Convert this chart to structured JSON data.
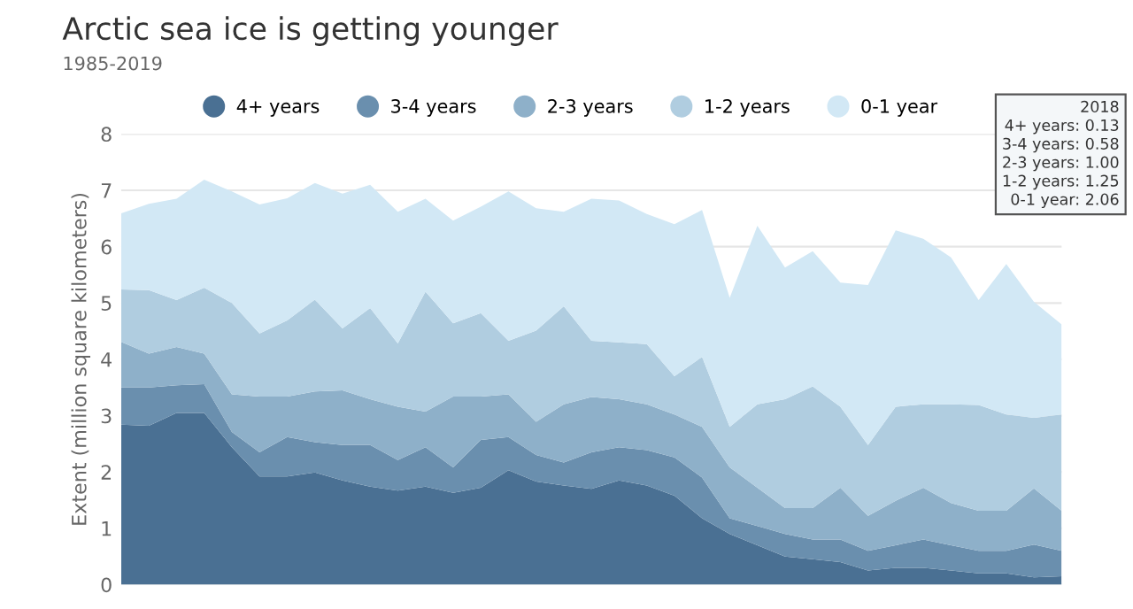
{
  "chart_data": {
    "type": "area",
    "stacked": true,
    "title": "Arctic sea ice is getting younger",
    "subtitle": "1985-2019",
    "ylabel": "Extent (million square kilometers)",
    "categories": [
      null,
      null,
      null,
      null,
      null,
      null,
      null,
      null,
      null,
      null,
      null,
      null,
      null,
      null,
      null,
      null,
      null,
      null,
      null,
      null,
      null,
      null,
      null,
      null,
      null,
      null,
      null,
      null,
      null,
      null,
      null,
      null,
      null,
      null,
      null
    ],
    "series": [
      {
        "name": "4+ years",
        "color": "#4a7093",
        "values": [
          2.84,
          2.82,
          3.05,
          3.05,
          2.44,
          1.92,
          1.92,
          1.99,
          1.85,
          1.74,
          1.67,
          1.74,
          1.63,
          1.72,
          2.03,
          1.83,
          1.76,
          1.7,
          1.85,
          1.76,
          1.58,
          1.18,
          0.9,
          0.7,
          0.5,
          0.45,
          0.4,
          0.25,
          0.3,
          0.3,
          0.25,
          0.2,
          0.2,
          0.13,
          0.15
        ]
      },
      {
        "name": "3-4 years",
        "color": "#6a8fae",
        "values": [
          0.66,
          0.68,
          0.49,
          0.51,
          0.27,
          0.43,
          0.7,
          0.54,
          0.63,
          0.74,
          0.54,
          0.7,
          0.45,
          0.85,
          0.59,
          0.47,
          0.41,
          0.65,
          0.59,
          0.63,
          0.68,
          0.72,
          0.28,
          0.34,
          0.4,
          0.35,
          0.4,
          0.35,
          0.4,
          0.5,
          0.45,
          0.4,
          0.4,
          0.58,
          0.45
        ]
      },
      {
        "name": "2-3 years",
        "color": "#8eb0c9",
        "values": [
          0.81,
          0.6,
          0.68,
          0.54,
          0.67,
          0.99,
          0.72,
          0.9,
          0.97,
          0.81,
          0.95,
          0.63,
          1.26,
          0.77,
          0.76,
          0.59,
          1.03,
          0.98,
          0.85,
          0.81,
          0.76,
          0.9,
          0.9,
          0.68,
          0.46,
          0.56,
          0.92,
          0.62,
          0.79,
          0.92,
          0.75,
          0.71,
          0.71,
          1.0,
          0.71
        ]
      },
      {
        "name": "1-2 years",
        "color": "#b0cde0",
        "values": [
          0.93,
          1.13,
          0.83,
          1.17,
          1.62,
          1.12,
          1.35,
          1.63,
          1.1,
          1.62,
          1.12,
          2.13,
          1.3,
          1.48,
          0.95,
          1.62,
          1.74,
          1.0,
          1.01,
          1.07,
          0.68,
          1.24,
          0.72,
          1.48,
          1.93,
          2.16,
          1.44,
          1.26,
          1.67,
          1.48,
          1.75,
          1.88,
          1.71,
          1.25,
          1.71
        ]
      },
      {
        "name": "0-1 year",
        "color": "#d2e8f5",
        "values": [
          1.35,
          1.53,
          1.8,
          1.92,
          1.98,
          2.29,
          2.17,
          2.07,
          2.39,
          2.19,
          2.34,
          1.65,
          1.82,
          1.89,
          2.65,
          2.17,
          1.68,
          2.52,
          2.52,
          2.31,
          2.7,
          2.61,
          2.29,
          3.17,
          2.34,
          2.4,
          2.2,
          2.84,
          3.13,
          2.94,
          2.61,
          1.86,
          2.67,
          2.06,
          1.6
        ]
      }
    ],
    "ylim": [
      0,
      8
    ],
    "yticks": [
      0,
      1,
      2,
      3,
      4,
      5,
      6,
      7,
      8
    ],
    "grid": "y",
    "legend": "top",
    "tick_labels": "y",
    "annotations": [
      "2018\n4+ years: 0.13\n3-4 years: 0.58\n2-3 years: 1.00\n1-2 years: 1.25\n0-1 year: 2.06"
    ]
  }
}
